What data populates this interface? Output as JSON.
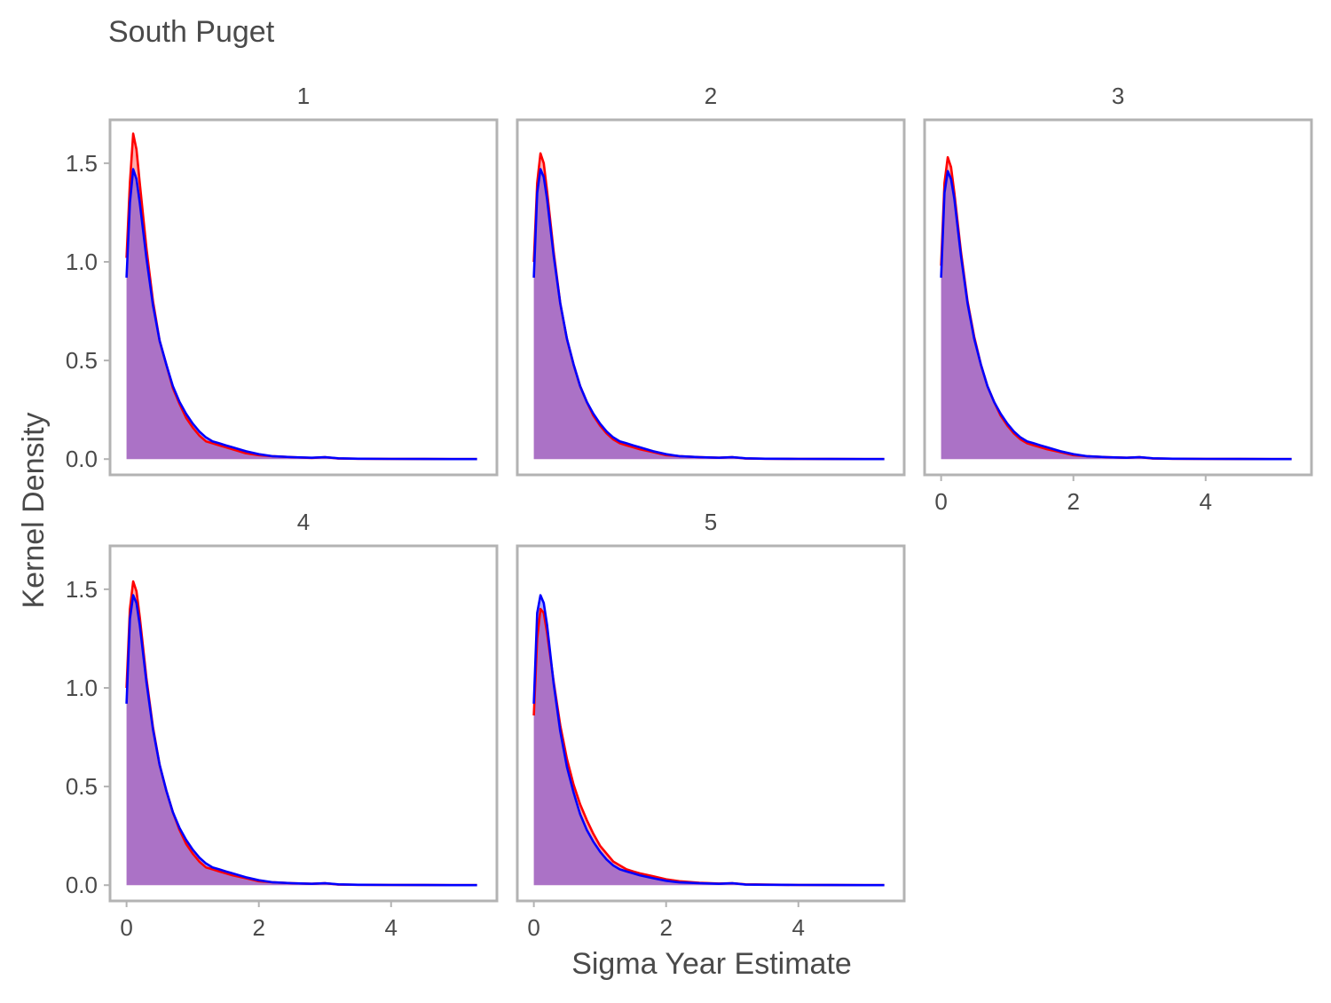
{
  "chart_data": {
    "type": "area",
    "title": "South Puget",
    "xlabel": "Sigma Year Estimate",
    "ylabel": "Kernel Density",
    "xlim": [
      -0.25,
      5.6
    ],
    "ylim": [
      -0.08,
      1.72
    ],
    "xticks": [
      0,
      2,
      4
    ],
    "yticks": [
      0.0,
      0.5,
      1.0,
      1.5
    ],
    "xtick_labels": [
      "0",
      "2",
      "4"
    ],
    "ytick_labels": [
      "0.0",
      "0.5",
      "1.0",
      "1.5"
    ],
    "grid": false,
    "legend": null,
    "colors": {
      "prior_line": "#ff0000",
      "prior_fill": "#ff0000",
      "posterior_line": "#0000ff",
      "posterior_fill": "#0000ff",
      "panel_border": "#b3b3b3"
    },
    "x": [
      0,
      0.05,
      0.1,
      0.15,
      0.2,
      0.3,
      0.4,
      0.5,
      0.6,
      0.7,
      0.8,
      0.9,
      1.0,
      1.1,
      1.2,
      1.3,
      1.4,
      1.5,
      1.6,
      1.8,
      2.0,
      2.2,
      2.5,
      2.8,
      3.0,
      3.2,
      3.5,
      4.0,
      4.5,
      5.0,
      5.3
    ],
    "panels": [
      {
        "label": "1",
        "series": [
          {
            "color": "red",
            "values": [
              1.02,
              1.4,
              1.65,
              1.57,
              1.4,
              1.07,
              0.8,
              0.6,
              0.48,
              0.36,
              0.28,
              0.21,
              0.16,
              0.12,
              0.09,
              0.08,
              0.07,
              0.06,
              0.05,
              0.03,
              0.02,
              0.015,
              0.01,
              0.006,
              0.01,
              0.003,
              0.002,
              0.001,
              0.0005,
              0.0002,
              0.0001
            ]
          },
          {
            "color": "blue",
            "values": [
              0.92,
              1.3,
              1.47,
              1.42,
              1.3,
              1.02,
              0.78,
              0.6,
              0.48,
              0.37,
              0.29,
              0.23,
              0.18,
              0.14,
              0.11,
              0.09,
              0.08,
              0.07,
              0.06,
              0.04,
              0.025,
              0.015,
              0.01,
              0.007,
              0.01,
              0.004,
              0.002,
              0.001,
              0.0005,
              0.0002,
              0.0001
            ]
          }
        ]
      },
      {
        "label": "2",
        "series": [
          {
            "color": "red",
            "values": [
              1.0,
              1.4,
              1.55,
              1.5,
              1.36,
              1.05,
              0.79,
              0.61,
              0.48,
              0.37,
              0.29,
              0.22,
              0.17,
              0.13,
              0.1,
              0.08,
              0.07,
              0.06,
              0.05,
              0.035,
              0.02,
              0.015,
              0.01,
              0.007,
              0.01,
              0.003,
              0.002,
              0.001,
              0.0005,
              0.0002,
              0.0001
            ]
          },
          {
            "color": "blue",
            "values": [
              0.92,
              1.35,
              1.47,
              1.43,
              1.32,
              1.03,
              0.79,
              0.61,
              0.48,
              0.37,
              0.29,
              0.23,
              0.18,
              0.14,
              0.11,
              0.09,
              0.08,
              0.07,
              0.06,
              0.04,
              0.025,
              0.015,
              0.01,
              0.007,
              0.01,
              0.004,
              0.002,
              0.001,
              0.0005,
              0.0002,
              0.0001
            ]
          }
        ]
      },
      {
        "label": "3",
        "series": [
          {
            "color": "red",
            "values": [
              0.98,
              1.4,
              1.53,
              1.48,
              1.35,
              1.05,
              0.8,
              0.62,
              0.48,
              0.37,
              0.29,
              0.22,
              0.17,
              0.13,
              0.1,
              0.08,
              0.07,
              0.06,
              0.05,
              0.035,
              0.02,
              0.015,
              0.01,
              0.007,
              0.01,
              0.003,
              0.002,
              0.001,
              0.0005,
              0.0002,
              0.0001
            ]
          },
          {
            "color": "blue",
            "values": [
              0.92,
              1.35,
              1.46,
              1.42,
              1.32,
              1.03,
              0.79,
              0.61,
              0.48,
              0.37,
              0.29,
              0.23,
              0.18,
              0.14,
              0.11,
              0.09,
              0.08,
              0.07,
              0.06,
              0.04,
              0.025,
              0.015,
              0.01,
              0.007,
              0.01,
              0.004,
              0.002,
              0.001,
              0.0005,
              0.0002,
              0.0001
            ]
          }
        ]
      },
      {
        "label": "4",
        "series": [
          {
            "color": "red",
            "values": [
              1.0,
              1.4,
              1.54,
              1.49,
              1.36,
              1.05,
              0.8,
              0.61,
              0.48,
              0.37,
              0.28,
              0.21,
              0.16,
              0.12,
              0.09,
              0.08,
              0.07,
              0.06,
              0.05,
              0.035,
              0.02,
              0.015,
              0.01,
              0.007,
              0.01,
              0.003,
              0.002,
              0.001,
              0.0005,
              0.0002,
              0.0001
            ]
          },
          {
            "color": "blue",
            "values": [
              0.92,
              1.35,
              1.47,
              1.43,
              1.32,
              1.03,
              0.79,
              0.61,
              0.48,
              0.37,
              0.29,
              0.23,
              0.18,
              0.14,
              0.11,
              0.09,
              0.08,
              0.07,
              0.06,
              0.04,
              0.025,
              0.015,
              0.01,
              0.007,
              0.01,
              0.004,
              0.002,
              0.001,
              0.0005,
              0.0002,
              0.0001
            ]
          }
        ]
      },
      {
        "label": "5",
        "series": [
          {
            "color": "red",
            "values": [
              0.86,
              1.25,
              1.4,
              1.38,
              1.28,
              1.03,
              0.81,
              0.64,
              0.51,
              0.41,
              0.33,
              0.26,
              0.2,
              0.16,
              0.12,
              0.1,
              0.08,
              0.07,
              0.06,
              0.045,
              0.03,
              0.02,
              0.012,
              0.008,
              0.01,
              0.004,
              0.003,
              0.001,
              0.0005,
              0.0002,
              0.0001
            ]
          },
          {
            "color": "blue",
            "values": [
              0.92,
              1.38,
              1.47,
              1.43,
              1.32,
              1.02,
              0.78,
              0.6,
              0.47,
              0.36,
              0.28,
              0.22,
              0.17,
              0.13,
              0.1,
              0.08,
              0.07,
              0.06,
              0.05,
              0.035,
              0.022,
              0.014,
              0.01,
              0.007,
              0.01,
              0.003,
              0.002,
              0.001,
              0.0005,
              0.0002,
              0.0001
            ]
          }
        ]
      }
    ]
  }
}
